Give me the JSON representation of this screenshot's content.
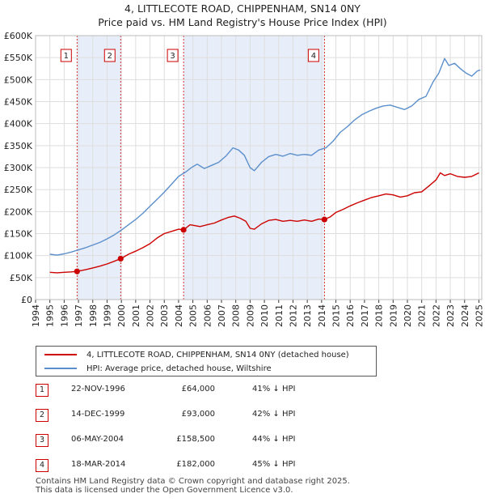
{
  "title_line1": "4, LITTLECOTE ROAD, CHIPPENHAM, SN14 0NY",
  "title_line2": "Price paid vs. HM Land Registry's House Price Index (HPI)",
  "legend": {
    "property_label": "4, LITTLECOTE ROAD, CHIPPENHAM, SN14 0NY (detached house)",
    "hpi_label": "HPI: Average price, detached house, Wiltshire"
  },
  "colors": {
    "property": "#cc0000",
    "hpi": "#5b8fcc",
    "shade": "#e8eef9",
    "grid": "#dddddd"
  },
  "sales": [
    {
      "num": "1",
      "date": "22-NOV-1996",
      "price": "£64,000",
      "hpi": "41% ↓ HPI"
    },
    {
      "num": "2",
      "date": "14-DEC-1999",
      "price": "£93,000",
      "hpi": "42% ↓ HPI"
    },
    {
      "num": "3",
      "date": "06-MAY-2004",
      "price": "£158,500",
      "hpi": "44% ↓ HPI"
    },
    {
      "num": "4",
      "date": "18-MAR-2014",
      "price": "£182,000",
      "hpi": "45% ↓ HPI"
    }
  ],
  "footer_line1": "Contains HM Land Registry data © Crown copyright and database right 2025.",
  "footer_line2": "This data is licensed under the Open Government Licence v3.0.",
  "chart_data": {
    "type": "line",
    "title": "4, LITTLECOTE ROAD, CHIPPENHAM, SN14 0NY",
    "subtitle": "Price paid vs. HM Land Registry's House Price Index (HPI)",
    "xlim": [
      1994,
      2025.2
    ],
    "ylim": [
      0,
      600000
    ],
    "xticks": [
      "1994",
      "1995",
      "1996",
      "1997",
      "1998",
      "1999",
      "2000",
      "2001",
      "2002",
      "2003",
      "2004",
      "2005",
      "2006",
      "2007",
      "2008",
      "2009",
      "2010",
      "2011",
      "2012",
      "2013",
      "2014",
      "2015",
      "2016",
      "2017",
      "2018",
      "2019",
      "2020",
      "2021",
      "2022",
      "2023",
      "2024",
      "2025"
    ],
    "yticks": [
      {
        "v": 0,
        "label": "£0"
      },
      {
        "v": 50000,
        "label": "£50K"
      },
      {
        "v": 100000,
        "label": "£100K"
      },
      {
        "v": 150000,
        "label": "£150K"
      },
      {
        "v": 200000,
        "label": "£200K"
      },
      {
        "v": 250000,
        "label": "£250K"
      },
      {
        "v": 300000,
        "label": "£300K"
      },
      {
        "v": 350000,
        "label": "£350K"
      },
      {
        "v": 400000,
        "label": "£400K"
      },
      {
        "v": 450000,
        "label": "£450K"
      },
      {
        "v": 500000,
        "label": "£500K"
      },
      {
        "v": 550000,
        "label": "£550K"
      },
      {
        "v": 600000,
        "label": "£600K"
      }
    ],
    "shaded_periods": [
      [
        1996.9,
        1999.95
      ],
      [
        2004.35,
        2014.2
      ]
    ],
    "sale_markers": [
      {
        "label": "1",
        "x": 1996.9,
        "y": 64000
      },
      {
        "label": "2",
        "x": 1999.95,
        "y": 93000
      },
      {
        "label": "3",
        "x": 2004.35,
        "y": 158500
      },
      {
        "label": "4",
        "x": 2014.2,
        "y": 182000
      }
    ],
    "series": [
      {
        "name": "4, LITTLECOTE ROAD, CHIPPENHAM, SN14 0NY (detached house)",
        "x": [
          1995,
          1995.5,
          1996,
          1996.5,
          1996.9,
          1997.5,
          1998,
          1998.5,
          1999,
          1999.5,
          1999.95,
          2000.5,
          2001,
          2001.5,
          2002,
          2002.5,
          2003,
          2003.5,
          2004,
          2004.35,
          2004.8,
          2005.5,
          2006,
          2006.5,
          2007,
          2007.5,
          2007.9,
          2008.3,
          2008.7,
          2009,
          2009.3,
          2009.8,
          2010.3,
          2010.8,
          2011.3,
          2011.8,
          2012.3,
          2012.8,
          2013.3,
          2013.8,
          2014.2,
          2014.6,
          2015,
          2015.5,
          2016,
          2016.5,
          2017,
          2017.5,
          2018,
          2018.5,
          2019,
          2019.5,
          2020,
          2020.5,
          2021,
          2021.5,
          2022,
          2022.3,
          2022.6,
          2023,
          2023.5,
          2024,
          2024.5,
          2025
        ],
        "y": [
          62000,
          61000,
          62000,
          63000,
          64000,
          68000,
          72000,
          76000,
          81000,
          87000,
          93000,
          103000,
          110000,
          118000,
          127000,
          140000,
          150000,
          155000,
          160000,
          158500,
          170000,
          166000,
          170000,
          174000,
          181000,
          187000,
          190000,
          185000,
          178000,
          162000,
          160000,
          172000,
          180000,
          182000,
          178000,
          180000,
          178000,
          181000,
          178000,
          183000,
          182000,
          188000,
          198000,
          205000,
          213000,
          220000,
          226000,
          232000,
          236000,
          240000,
          238000,
          233000,
          236000,
          243000,
          245000,
          258000,
          272000,
          288000,
          282000,
          286000,
          280000,
          278000,
          280000,
          288000
        ]
      },
      {
        "name": "HPI: Average price, detached house, Wiltshire",
        "x": [
          1995,
          1995.5,
          1996,
          1996.5,
          1997,
          1997.5,
          1998,
          1998.5,
          1999,
          1999.5,
          2000,
          2000.5,
          2001,
          2001.5,
          2002,
          2002.5,
          2003,
          2003.5,
          2004,
          2004.5,
          2004.9,
          2005.3,
          2005.8,
          2006.3,
          2006.8,
          2007.3,
          2007.8,
          2008.2,
          2008.6,
          2009,
          2009.3,
          2009.8,
          2010.3,
          2010.8,
          2011.3,
          2011.8,
          2012.3,
          2012.8,
          2013.3,
          2013.8,
          2014.3,
          2014.8,
          2015.3,
          2015.8,
          2016.3,
          2016.8,
          2017.3,
          2017.8,
          2018.3,
          2018.8,
          2019.3,
          2019.8,
          2020.3,
          2020.8,
          2021.3,
          2021.8,
          2022.2,
          2022.6,
          2022.9,
          2023.3,
          2023.7,
          2024.1,
          2024.5,
          2024.9,
          2025.1
        ],
        "y": [
          103000,
          101000,
          104000,
          108000,
          113000,
          118000,
          124000,
          130000,
          138000,
          147000,
          158000,
          170000,
          182000,
          196000,
          212000,
          228000,
          244000,
          262000,
          280000,
          290000,
          300000,
          308000,
          298000,
          305000,
          312000,
          326000,
          345000,
          340000,
          328000,
          300000,
          293000,
          312000,
          325000,
          330000,
          326000,
          332000,
          328000,
          330000,
          328000,
          340000,
          345000,
          360000,
          380000,
          393000,
          408000,
          420000,
          428000,
          435000,
          440000,
          442000,
          437000,
          432000,
          440000,
          455000,
          462000,
          495000,
          515000,
          548000,
          532000,
          537000,
          525000,
          515000,
          508000,
          520000,
          522000
        ]
      }
    ]
  }
}
